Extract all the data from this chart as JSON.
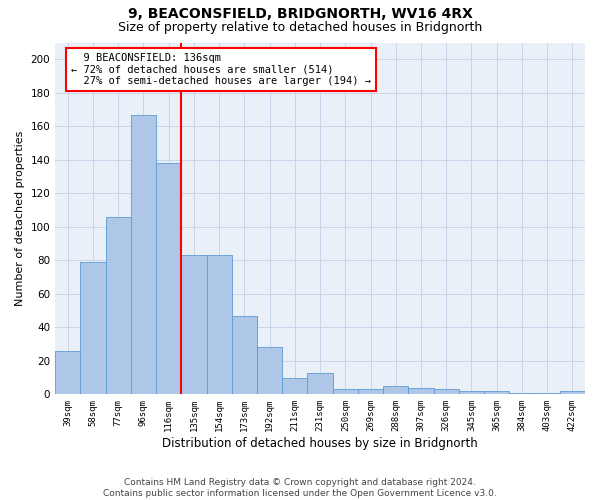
{
  "title1": "9, BEACONSFIELD, BRIDGNORTH, WV16 4RX",
  "title2": "Size of property relative to detached houses in Bridgnorth",
  "xlabel": "Distribution of detached houses by size in Bridgnorth",
  "ylabel": "Number of detached properties",
  "footer": "Contains HM Land Registry data © Crown copyright and database right 2024.\nContains public sector information licensed under the Open Government Licence v3.0.",
  "bar_labels": [
    "39sqm",
    "58sqm",
    "77sqm",
    "96sqm",
    "116sqm",
    "135sqm",
    "154sqm",
    "173sqm",
    "192sqm",
    "211sqm",
    "231sqm",
    "250sqm",
    "269sqm",
    "288sqm",
    "307sqm",
    "326sqm",
    "345sqm",
    "365sqm",
    "384sqm",
    "403sqm",
    "422sqm"
  ],
  "bar_values": [
    26,
    79,
    106,
    167,
    138,
    83,
    83,
    47,
    28,
    10,
    13,
    3,
    3,
    5,
    4,
    3,
    2,
    2,
    1,
    1,
    2
  ],
  "bar_color": "#aec6e8",
  "bar_edge_color": "#5b9bd5",
  "vline_x": 4.5,
  "vline_color": "red",
  "annotation_text": "  9 BEACONSFIELD: 136sqm\n← 72% of detached houses are smaller (514)\n  27% of semi-detached houses are larger (194) →",
  "annotation_box_color": "red",
  "ylim": [
    0,
    210
  ],
  "yticks": [
    0,
    20,
    40,
    60,
    80,
    100,
    120,
    140,
    160,
    180,
    200
  ],
  "grid_color": "#c8d4e8",
  "bg_color": "#eaf0f8",
  "title1_fontsize": 10,
  "title2_fontsize": 9,
  "xlabel_fontsize": 8.5,
  "ylabel_fontsize": 8,
  "annotation_fontsize": 7.5,
  "footer_fontsize": 6.5
}
